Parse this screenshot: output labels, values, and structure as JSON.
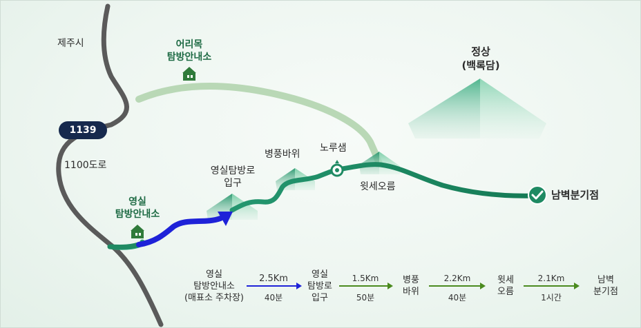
{
  "map": {
    "labels": {
      "jeju_city": "제주시",
      "road_1100": "1100도로",
      "road_badge": "1139",
      "eorimok_line1": "어리목",
      "eorimok_line2": "탐방안내소",
      "yeongsil_line1": "영실",
      "yeongsil_line2": "탐방안내소",
      "yeongsil_trail_line1": "영실탐방로",
      "yeongsil_trail_line2": "입구",
      "byeongpung": "병풍바위",
      "norusaem": "노루샘",
      "witse": "윗세오름",
      "summit_line1": "정상",
      "summit_line2": "(백록담)",
      "nambyeok": "남벽분기점"
    },
    "colors": {
      "trail_green": "#1f8a63",
      "trail_light": "#b9d8b6",
      "trail_blue": "#1e22d8",
      "road_gray": "#5a5a5a",
      "badge_navy": "#16294d"
    }
  },
  "legend": {
    "stops": [
      {
        "line1": "영실",
        "line2": "탐방안내소",
        "line3": "(매표소 주차장)"
      },
      {
        "line1": "영실",
        "line2": "탐방로",
        "line3": "입구"
      },
      {
        "line1": "병풍",
        "line2": "바위"
      },
      {
        "line1": "윗세",
        "line2": "오름"
      },
      {
        "line1": "남벽",
        "line2": "분기점"
      }
    ],
    "segments": [
      {
        "distance": "2.5Km",
        "time": "40분",
        "color": "#1e22d8"
      },
      {
        "distance": "1.5Km",
        "time": "50분",
        "color": "#4a8a1e"
      },
      {
        "distance": "2.2Km",
        "time": "40분",
        "color": "#4a8a1e"
      },
      {
        "distance": "2.1Km",
        "time": "1시간",
        "color": "#4a8a1e"
      }
    ]
  }
}
